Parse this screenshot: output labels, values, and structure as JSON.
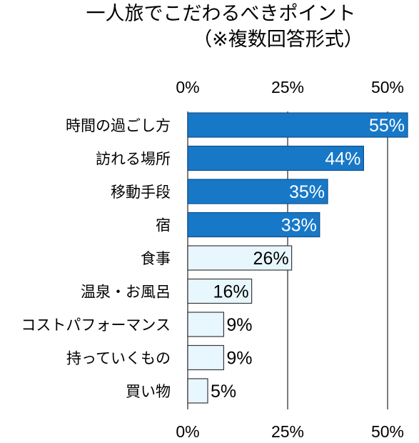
{
  "chart_data": {
    "type": "bar",
    "orientation": "horizontal",
    "title": "一人旅でこだわるべきポイント",
    "subtitle": "（※複数回答形式）",
    "categories": [
      "時間の過ごし方",
      "訪れる場所",
      "移動手段",
      "宿",
      "食事",
      "温泉・お風呂",
      "コストパフォーマンス",
      "持っていくもの",
      "買い物"
    ],
    "values": [
      55,
      44,
      35,
      33,
      26,
      16,
      9,
      9,
      5
    ],
    "value_labels": [
      "55%",
      "44%",
      "35%",
      "33%",
      "26%",
      "16%",
      "9%",
      "9%",
      "5%"
    ],
    "xlim": [
      0,
      55
    ],
    "xticks": [
      0,
      25,
      50
    ],
    "xtick_labels": [
      "0%",
      "25%",
      "50%"
    ],
    "xaxis_labels_position": "top-and-bottom",
    "grid": true,
    "legend": "none",
    "highlight_count": 4,
    "colors": {
      "highlight_fill": "#1878c8",
      "highlight_stroke": "#0f4f8a",
      "normal_fill": "#e8f6fd",
      "normal_stroke": "#3a3a3a",
      "highlight_text": "#ffffff",
      "normal_text": "#000000",
      "grid": "#444444"
    }
  }
}
